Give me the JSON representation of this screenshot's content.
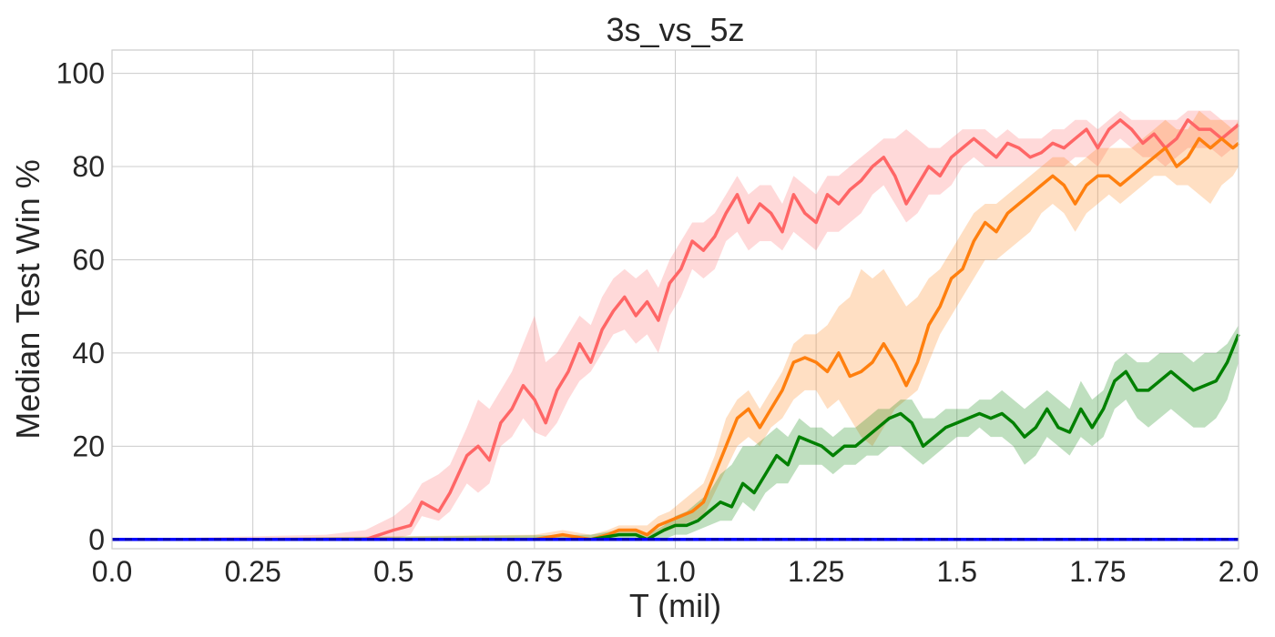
{
  "chart_data": {
    "type": "line",
    "title": "3s_vs_5z",
    "xlabel": "T (mil)",
    "ylabel": "Median Test Win %",
    "xlim": [
      0.0,
      2.0
    ],
    "ylim": [
      -2,
      105
    ],
    "xticks": [
      "0.0",
      "0.25",
      "0.5",
      "0.75",
      "1.0",
      "1.25",
      "1.5",
      "1.75",
      "2.0"
    ],
    "yticks": [
      "0",
      "20",
      "40",
      "60",
      "80",
      "100"
    ],
    "grid": true,
    "legend": "none",
    "series": [
      {
        "color": "#ff6666",
        "x": [
          0.0,
          0.38,
          0.45,
          0.5,
          0.53,
          0.55,
          0.58,
          0.6,
          0.63,
          0.65,
          0.67,
          0.69,
          0.71,
          0.73,
          0.75,
          0.77,
          0.79,
          0.81,
          0.83,
          0.85,
          0.87,
          0.89,
          0.91,
          0.93,
          0.95,
          0.97,
          0.99,
          1.01,
          1.03,
          1.05,
          1.07,
          1.09,
          1.11,
          1.13,
          1.15,
          1.17,
          1.19,
          1.21,
          1.23,
          1.25,
          1.27,
          1.29,
          1.31,
          1.33,
          1.35,
          1.37,
          1.39,
          1.41,
          1.43,
          1.45,
          1.47,
          1.49,
          1.51,
          1.53,
          1.55,
          1.57,
          1.59,
          1.61,
          1.63,
          1.65,
          1.67,
          1.69,
          1.71,
          1.73,
          1.75,
          1.77,
          1.79,
          1.81,
          1.83,
          1.85,
          1.87,
          1.89,
          1.91,
          1.93,
          1.95,
          1.97,
          1.99,
          2.0
        ],
        "y": [
          0,
          0,
          0,
          2,
          3,
          8,
          6,
          10,
          18,
          20,
          17,
          25,
          28,
          33,
          30,
          25,
          32,
          36,
          42,
          38,
          45,
          49,
          52,
          48,
          51,
          47,
          55,
          58,
          64,
          62,
          65,
          70,
          74,
          68,
          72,
          70,
          66,
          74,
          70,
          68,
          74,
          72,
          75,
          77,
          80,
          82,
          78,
          72,
          76,
          80,
          78,
          82,
          84,
          86,
          84,
          82,
          85,
          84,
          82,
          83,
          85,
          84,
          86,
          88,
          84,
          88,
          90,
          88,
          85,
          87,
          84,
          86,
          90,
          88,
          88,
          86,
          88,
          89
        ],
        "band_low": [
          0,
          0,
          0,
          0,
          1,
          5,
          4,
          6,
          12,
          10,
          12,
          20,
          22,
          26,
          23,
          22,
          25,
          30,
          34,
          36,
          40,
          44,
          45,
          42,
          44,
          40,
          48,
          52,
          58,
          56,
          58,
          64,
          66,
          62,
          64,
          64,
          62,
          66,
          64,
          62,
          66,
          66,
          68,
          70,
          74,
          76,
          72,
          68,
          70,
          74,
          74,
          76,
          80,
          82,
          80,
          80,
          80,
          80,
          80,
          80,
          80,
          80,
          82,
          82,
          80,
          84,
          86,
          84,
          82,
          82,
          80,
          82,
          84,
          84,
          84,
          82,
          84,
          86
        ],
        "band_high": [
          0,
          1,
          2,
          5,
          8,
          12,
          14,
          16,
          24,
          30,
          28,
          32,
          36,
          42,
          48,
          38,
          40,
          44,
          48,
          46,
          52,
          56,
          58,
          56,
          58,
          54,
          60,
          64,
          68,
          68,
          70,
          74,
          78,
          74,
          76,
          76,
          72,
          78,
          76,
          74,
          78,
          78,
          80,
          82,
          84,
          86,
          86,
          88,
          86,
          84,
          84,
          86,
          88,
          88,
          88,
          86,
          88,
          86,
          86,
          86,
          88,
          88,
          90,
          90,
          88,
          90,
          92,
          90,
          90,
          90,
          90,
          90,
          92,
          92,
          92,
          90,
          90,
          90
        ]
      },
      {
        "color": "#ff7f0e",
        "x": [
          0.0,
          0.75,
          0.8,
          0.85,
          0.88,
          0.9,
          0.93,
          0.95,
          0.97,
          0.99,
          1.01,
          1.03,
          1.05,
          1.07,
          1.09,
          1.11,
          1.13,
          1.15,
          1.17,
          1.19,
          1.21,
          1.23,
          1.25,
          1.27,
          1.29,
          1.31,
          1.33,
          1.35,
          1.37,
          1.39,
          1.41,
          1.43,
          1.45,
          1.47,
          1.49,
          1.51,
          1.53,
          1.55,
          1.57,
          1.59,
          1.61,
          1.63,
          1.65,
          1.67,
          1.69,
          1.71,
          1.73,
          1.75,
          1.77,
          1.79,
          1.81,
          1.83,
          1.85,
          1.87,
          1.89,
          1.91,
          1.93,
          1.95,
          1.97,
          1.99,
          2.0
        ],
        "y": [
          0,
          0,
          1,
          0,
          1,
          2,
          2,
          1,
          3,
          4,
          5,
          6,
          8,
          14,
          20,
          26,
          28,
          24,
          28,
          32,
          38,
          39,
          38,
          36,
          40,
          35,
          36,
          38,
          42,
          38,
          33,
          38,
          46,
          50,
          56,
          58,
          64,
          68,
          66,
          70,
          72,
          74,
          76,
          78,
          76,
          72,
          76,
          78,
          78,
          76,
          78,
          80,
          82,
          84,
          80,
          82,
          86,
          84,
          86,
          84,
          85
        ],
        "band_low": [
          0,
          0,
          0,
          0,
          0,
          1,
          1,
          0,
          1,
          2,
          3,
          4,
          5,
          10,
          15,
          20,
          22,
          20,
          24,
          26,
          30,
          32,
          32,
          28,
          30,
          26,
          22,
          20,
          24,
          28,
          30,
          32,
          38,
          44,
          48,
          52,
          56,
          60,
          60,
          62,
          64,
          66,
          70,
          72,
          70,
          66,
          70,
          72,
          74,
          72,
          74,
          76,
          78,
          78,
          76,
          76,
          74,
          72,
          76,
          78,
          80
        ],
        "band_high": [
          0,
          1,
          2,
          1,
          2,
          3,
          3,
          3,
          5,
          6,
          8,
          10,
          12,
          18,
          26,
          30,
          32,
          28,
          32,
          36,
          42,
          44,
          44,
          46,
          50,
          52,
          58,
          56,
          58,
          54,
          50,
          52,
          56,
          58,
          62,
          66,
          70,
          72,
          72,
          74,
          76,
          78,
          80,
          82,
          82,
          80,
          82,
          84,
          84,
          84,
          84,
          86,
          88,
          90,
          88,
          88,
          92,
          90,
          90,
          88,
          90
        ]
      },
      {
        "color": "#008000",
        "x": [
          0.0,
          0.85,
          0.9,
          0.93,
          0.95,
          0.98,
          1.0,
          1.02,
          1.04,
          1.06,
          1.08,
          1.1,
          1.12,
          1.14,
          1.16,
          1.18,
          1.2,
          1.22,
          1.24,
          1.26,
          1.28,
          1.3,
          1.32,
          1.34,
          1.36,
          1.38,
          1.4,
          1.42,
          1.44,
          1.46,
          1.48,
          1.5,
          1.52,
          1.54,
          1.56,
          1.58,
          1.6,
          1.62,
          1.64,
          1.66,
          1.68,
          1.7,
          1.72,
          1.74,
          1.76,
          1.78,
          1.8,
          1.82,
          1.84,
          1.86,
          1.88,
          1.9,
          1.92,
          1.94,
          1.96,
          1.98,
          2.0
        ],
        "y": [
          0,
          0,
          1,
          1,
          0,
          2,
          3,
          3,
          4,
          6,
          8,
          7,
          12,
          10,
          14,
          18,
          16,
          22,
          21,
          20,
          18,
          20,
          20,
          22,
          24,
          26,
          27,
          25,
          20,
          22,
          24,
          25,
          26,
          27,
          26,
          27,
          25,
          22,
          24,
          28,
          24,
          23,
          28,
          24,
          28,
          34,
          36,
          32,
          32,
          34,
          36,
          34,
          32,
          33,
          34,
          38,
          44
        ],
        "band_low": [
          0,
          0,
          0,
          0,
          0,
          0,
          1,
          1,
          2,
          3,
          4,
          4,
          8,
          6,
          10,
          12,
          12,
          16,
          16,
          16,
          14,
          16,
          16,
          18,
          18,
          20,
          20,
          18,
          16,
          18,
          20,
          22,
          22,
          24,
          22,
          22,
          20,
          16,
          18,
          22,
          20,
          18,
          22,
          20,
          22,
          28,
          30,
          26,
          24,
          26,
          28,
          26,
          24,
          24,
          26,
          30,
          38
        ],
        "band_high": [
          0,
          1,
          2,
          2,
          1,
          3,
          5,
          6,
          8,
          10,
          14,
          16,
          20,
          20,
          22,
          24,
          22,
          26,
          24,
          24,
          22,
          24,
          24,
          26,
          28,
          28,
          30,
          30,
          26,
          26,
          28,
          28,
          28,
          30,
          30,
          32,
          30,
          28,
          30,
          32,
          30,
          28,
          34,
          30,
          32,
          38,
          40,
          38,
          38,
          40,
          40,
          40,
          38,
          40,
          40,
          42,
          46
        ]
      },
      {
        "color": "#0000ff",
        "x": [
          0.0,
          2.0
        ],
        "y": [
          0,
          0
        ],
        "band_low": [
          0,
          0
        ],
        "band_high": [
          0,
          0
        ]
      }
    ]
  }
}
